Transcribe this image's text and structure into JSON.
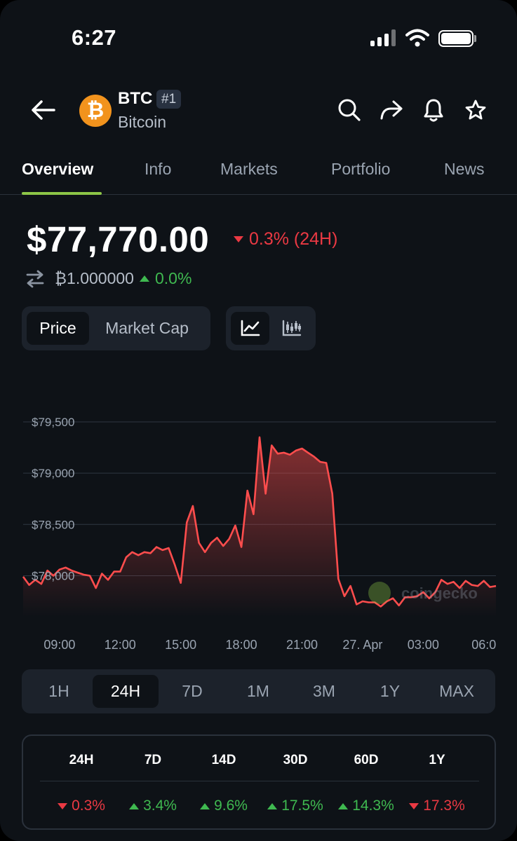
{
  "status": {
    "time": "6:27"
  },
  "header": {
    "symbol": "BTC",
    "rank": "#1",
    "name": "Bitcoin",
    "logo_glyph": "₿"
  },
  "tabs": [
    {
      "label": "Overview",
      "active": true
    },
    {
      "label": "Info"
    },
    {
      "label": "Markets"
    },
    {
      "label": "Portfolio"
    },
    {
      "label": "News"
    }
  ],
  "price": {
    "value": "$77,770.00",
    "change_24h": "0.3% (24H)",
    "btc_value": "₿1.000000",
    "btc_change": "0.0%"
  },
  "toggles": {
    "price": "Price",
    "market_cap": "Market Cap"
  },
  "ranges": [
    "1H",
    "24H",
    "7D",
    "1M",
    "3M",
    "1Y",
    "MAX"
  ],
  "active_range": "24H",
  "performance": [
    {
      "period": "24H",
      "change": "0.3%",
      "dir": "down"
    },
    {
      "period": "7D",
      "change": "3.4%",
      "dir": "up"
    },
    {
      "period": "14D",
      "change": "9.6%",
      "dir": "up"
    },
    {
      "period": "30D",
      "change": "17.5%",
      "dir": "up"
    },
    {
      "period": "60D",
      "change": "14.3%",
      "dir": "up"
    },
    {
      "period": "1Y",
      "change": "17.3%",
      "dir": "down"
    }
  ],
  "watermark": "coingecko",
  "colors": {
    "accent": "#8dc647",
    "negative": "#ea3943",
    "positive": "#3fb950",
    "line": "#ff4d4d"
  },
  "chart_data": {
    "type": "area",
    "x_tick_labels": [
      "09:00",
      "12:00",
      "15:00",
      "18:00",
      "21:00",
      "27. Apr",
      "03:00",
      "06:0"
    ],
    "y_tick_labels": [
      "$79,500",
      "$79,000",
      "$78,500",
      "$78,000"
    ],
    "y_ticks": [
      79500,
      79000,
      78500,
      78000
    ],
    "ylim": [
      77600,
      79650
    ],
    "xlim": [
      7.2,
      30.6
    ],
    "x_tick_values": [
      9,
      12,
      15,
      18,
      21,
      24,
      27,
      30
    ],
    "series": [
      {
        "x": [
          7.2,
          7.5,
          7.8,
          8.1,
          8.4,
          8.7,
          9.0,
          9.3,
          9.6,
          9.9,
          10.2,
          10.5,
          10.8,
          11.1,
          11.4,
          11.7,
          12.0,
          12.3,
          12.6,
          12.9,
          13.2,
          13.5,
          13.8,
          14.1,
          14.4,
          14.7,
          15.0,
          15.3,
          15.6,
          15.9,
          16.2,
          16.5,
          16.8,
          17.1,
          17.4,
          17.7,
          18.0,
          18.3,
          18.6,
          18.9,
          19.2,
          19.5,
          19.8,
          20.1,
          20.4,
          20.7,
          21.0,
          21.3,
          21.6,
          21.9,
          22.2,
          22.5,
          22.8,
          23.1,
          23.4,
          23.7,
          24.0,
          24.3,
          24.6,
          24.9,
          25.2,
          25.5,
          25.8,
          26.1,
          26.4,
          26.7,
          27.0,
          27.3,
          27.6,
          27.9,
          28.2,
          28.5,
          28.8,
          29.1,
          29.4,
          29.7,
          30.0,
          30.3,
          30.6
        ],
        "y": [
          77990,
          77910,
          77960,
          77920,
          78050,
          78000,
          78060,
          78080,
          78050,
          78030,
          78010,
          78000,
          77880,
          78020,
          77960,
          78040,
          78040,
          78180,
          78230,
          78200,
          78230,
          78220,
          78280,
          78250,
          78270,
          78110,
          77930,
          78520,
          78680,
          78320,
          78230,
          78320,
          78370,
          78290,
          78360,
          78490,
          78280,
          78830,
          78600,
          79350,
          78800,
          79270,
          79190,
          79200,
          79180,
          79220,
          79240,
          79200,
          79160,
          79110,
          79100,
          78800,
          77970,
          77800,
          77900,
          77720,
          77750,
          77740,
          77740,
          77700,
          77750,
          77780,
          77710,
          77790,
          77790,
          77800,
          77840,
          77780,
          77840,
          77960,
          77920,
          77940,
          77880,
          77950,
          77910,
          77900,
          77950,
          77890,
          77900
        ]
      }
    ],
    "grid": true
  }
}
